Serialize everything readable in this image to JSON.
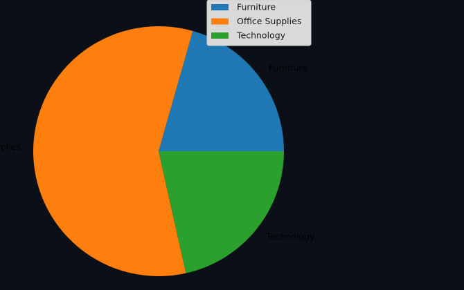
{
  "chart_data": {
    "type": "pie",
    "title": "",
    "categories": [
      "Furniture",
      "Office Supplies",
      "Technology"
    ],
    "values": [
      20.6,
      57.9,
      21.5
    ],
    "colors": [
      "#1f77b4",
      "#ff7f0e",
      "#2ca02c"
    ],
    "slice_labels": [
      "Furniture",
      "Office Supplies",
      "Technology"
    ],
    "legend": {
      "entries": [
        "Furniture",
        "Office Supplies",
        "Technology"
      ],
      "placement": "upper center"
    },
    "start_angle": 0,
    "direction": "counterclockwise"
  }
}
